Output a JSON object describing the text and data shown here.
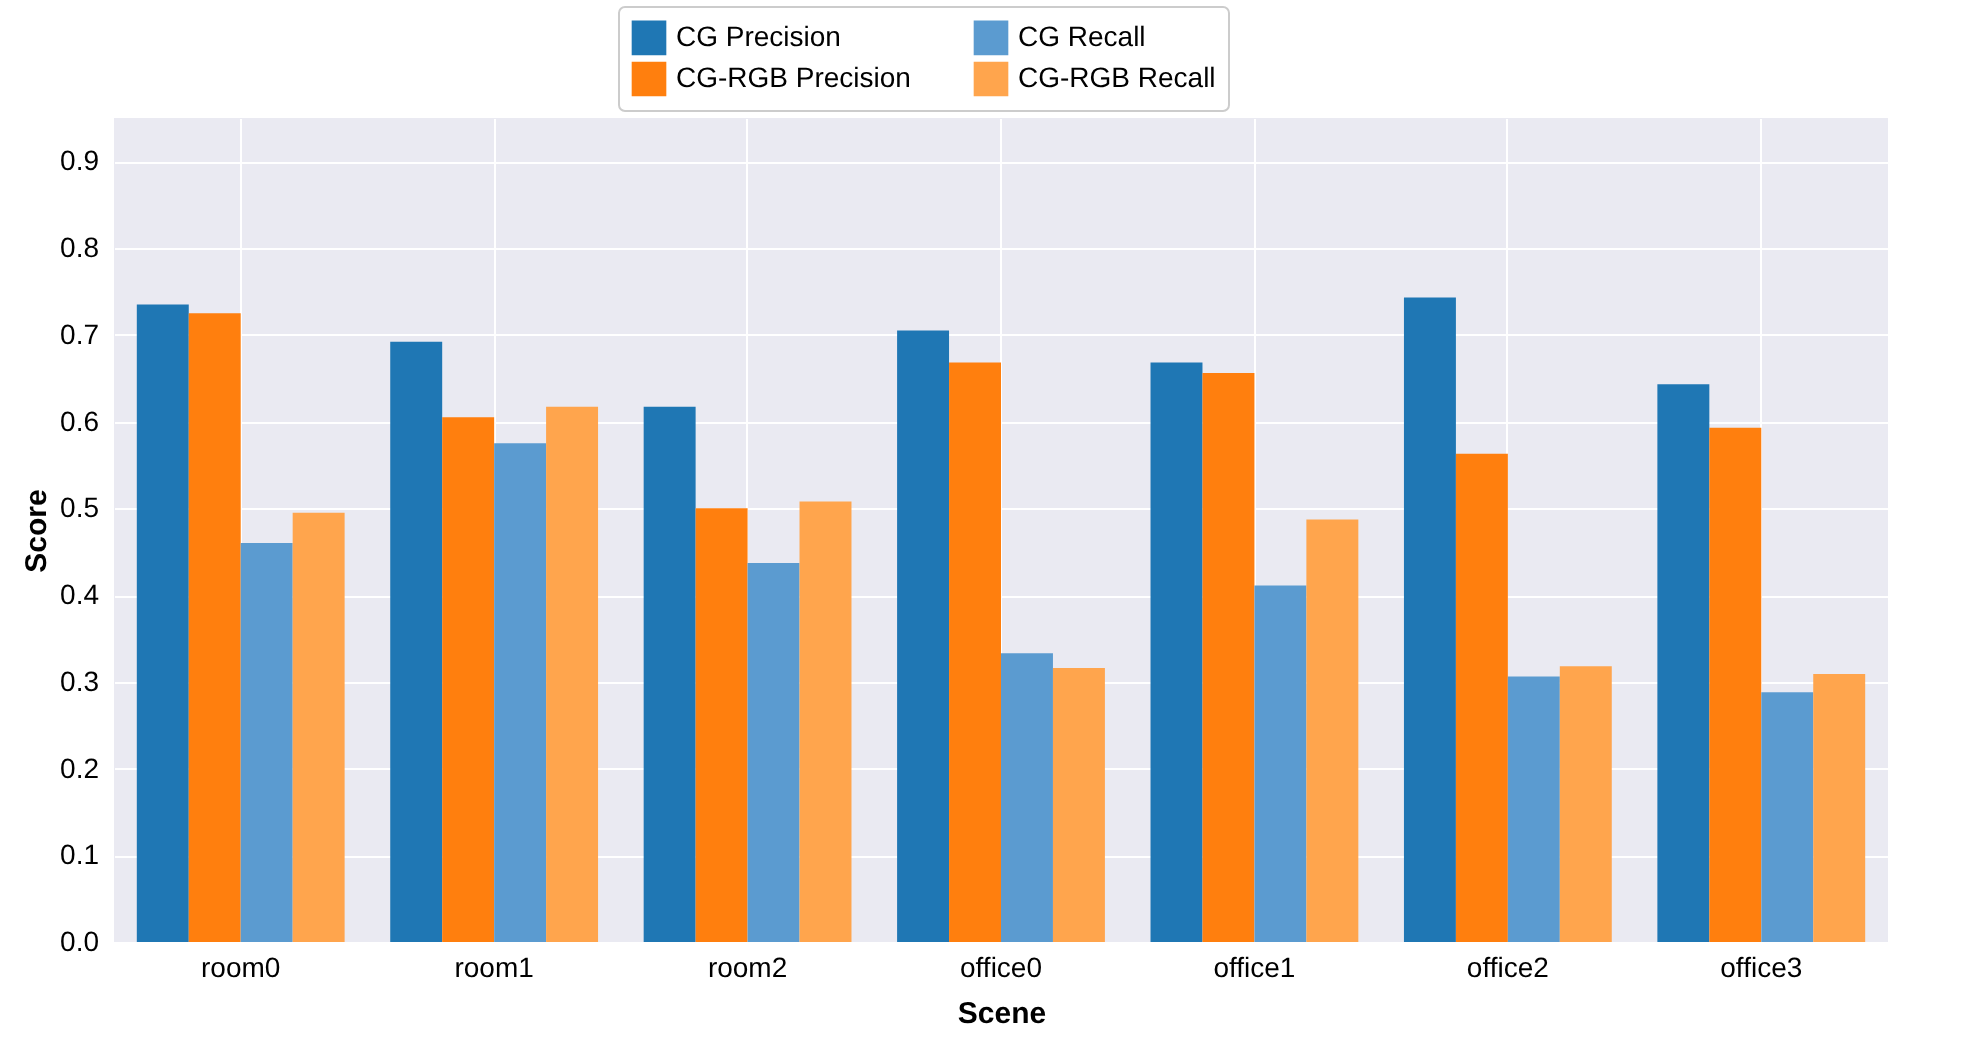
{
  "chart_data": {
    "type": "bar",
    "xlabel": "Scene",
    "ylabel": "Score",
    "categories": [
      "room0",
      "room1",
      "room2",
      "office0",
      "office1",
      "office2",
      "office3"
    ],
    "series": [
      {
        "name": "CG Precision",
        "color": "#1f77b4",
        "values": [
          0.735,
          0.692,
          0.617,
          0.705,
          0.668,
          0.743,
          0.643
        ]
      },
      {
        "name": "CG-RGB Precision",
        "color": "#ff7f0e",
        "values": [
          0.725,
          0.605,
          0.5,
          0.668,
          0.656,
          0.563,
          0.593
        ]
      },
      {
        "name": "CG Recall",
        "color": "#5b9bd0",
        "values": [
          0.46,
          0.575,
          0.437,
          0.333,
          0.411,
          0.306,
          0.288
        ]
      },
      {
        "name": "CG-RGB Recall",
        "color": "#ffa54d",
        "values": [
          0.495,
          0.617,
          0.508,
          0.316,
          0.487,
          0.318,
          0.309
        ]
      }
    ],
    "ylim": [
      0,
      0.95
    ],
    "yticks": [
      {
        "value": 0,
        "label": "0.0"
      },
      0.1,
      0.2,
      0.3,
      0.4,
      0.5,
      0.6,
      0.7,
      0.8,
      0.9
    ],
    "grid": true,
    "legend": "top"
  }
}
